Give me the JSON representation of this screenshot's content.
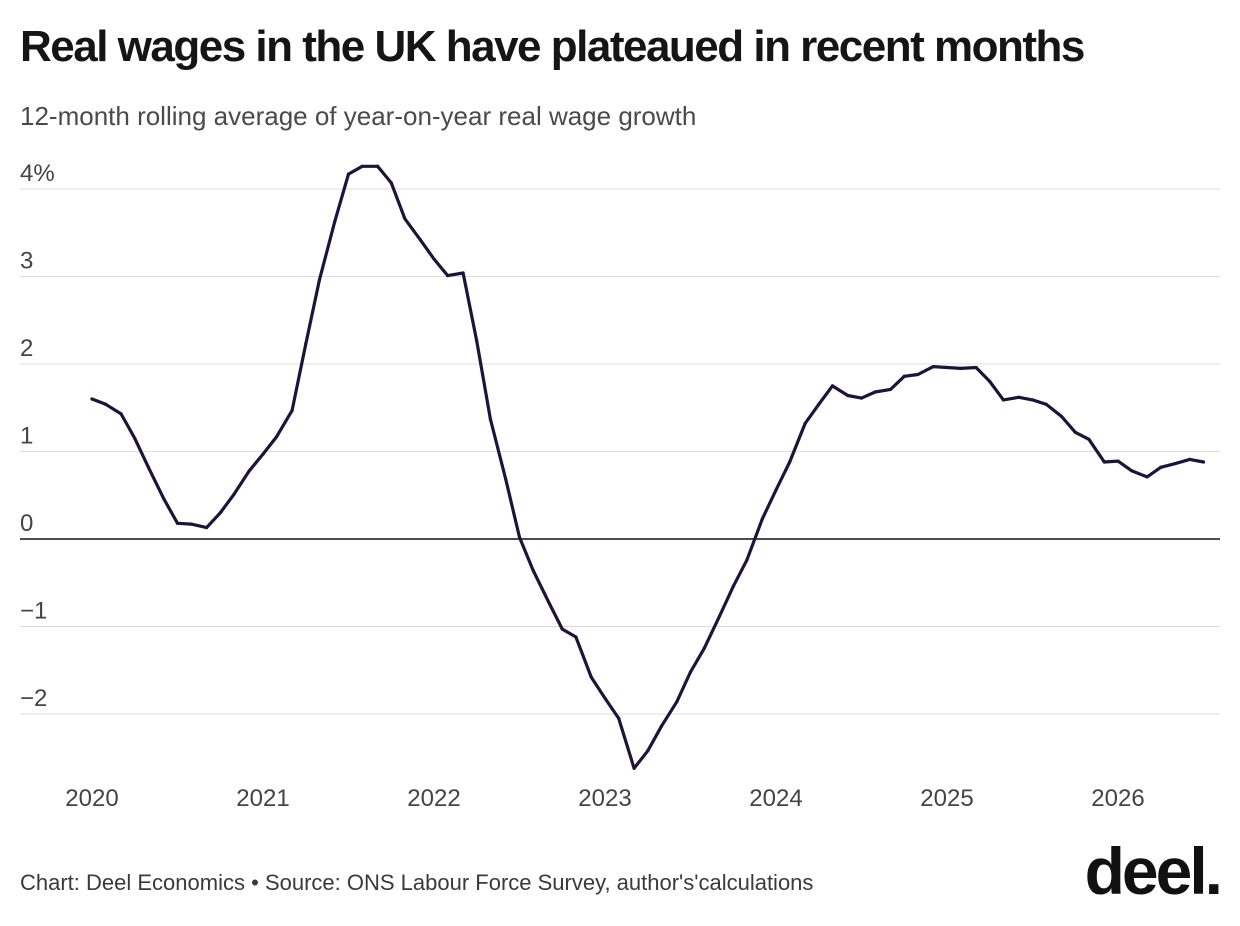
{
  "header": {
    "title": "Real wages in the UK have plateaued in recent months",
    "subtitle": "12-month rolling average of year-on-year real wage growth"
  },
  "footer": {
    "credit": "Chart: Deel Economics",
    "separator": "•",
    "source": "Source: ONS Labour Force Survey, author's'calculations",
    "logo": "deel."
  },
  "chart_data": {
    "type": "line",
    "x_unit": "year (decimal)",
    "xlim": [
      2020,
      2026.67
    ],
    "ylim": [
      -2.6,
      4.3
    ],
    "grid": true,
    "y_ticks": [
      4,
      3,
      2,
      1,
      0,
      -1,
      -2
    ],
    "y_tick_labels": [
      "4%",
      "3",
      "2",
      "1",
      "0",
      "−1",
      "−2"
    ],
    "x_ticks": [
      2020,
      2021,
      2022,
      2023,
      2024,
      2025,
      2026
    ],
    "x_tick_labels": [
      "2020",
      "2021",
      "2022",
      "2023",
      "2024",
      "2025",
      "2026"
    ],
    "line_color": "#1e1338",
    "series": [
      {
        "x": [
          2020.0,
          2020.08,
          2020.17,
          2020.25,
          2020.33,
          2020.42,
          2020.5,
          2020.58,
          2020.67,
          2020.75,
          2020.83,
          2020.92,
          2021.0,
          2021.08,
          2021.17,
          2021.25,
          2021.33,
          2021.42,
          2021.5,
          2021.58,
          2021.67,
          2021.75,
          2021.83,
          2021.92,
          2022.0,
          2022.08,
          2022.17,
          2022.25,
          2022.33,
          2022.42,
          2022.5,
          2022.58,
          2022.67,
          2022.75,
          2022.83,
          2022.92,
          2023.0,
          2023.08,
          2023.17,
          2023.25,
          2023.33,
          2023.42,
          2023.5,
          2023.58,
          2023.67,
          2023.75,
          2023.83,
          2023.92,
          2024.0,
          2024.08,
          2024.17,
          2024.25,
          2024.33,
          2024.42,
          2024.5,
          2024.58,
          2024.67,
          2024.75,
          2024.83,
          2024.92,
          2025.0,
          2025.08,
          2025.17,
          2025.25,
          2025.33,
          2025.42,
          2025.5,
          2025.58,
          2025.67,
          2025.75,
          2025.83,
          2025.92,
          2026.0,
          2026.08,
          2026.17,
          2026.25,
          2026.33,
          2026.42,
          2026.5
        ],
        "values": [
          1.6,
          1.54,
          1.43,
          1.15,
          0.82,
          0.46,
          0.18,
          0.17,
          0.13,
          0.3,
          0.51,
          0.78,
          0.97,
          1.17,
          1.47,
          2.23,
          2.96,
          3.63,
          4.17,
          4.26,
          4.26,
          4.07,
          3.66,
          3.42,
          3.2,
          3.01,
          3.04,
          2.26,
          1.37,
          0.68,
          0.02,
          -0.36,
          -0.72,
          -1.03,
          -1.12,
          -1.58,
          -1.82,
          -2.05,
          -2.62,
          -2.42,
          -2.14,
          -1.86,
          -1.52,
          -1.25,
          -0.88,
          -0.54,
          -0.24,
          0.23,
          0.56,
          0.88,
          1.32,
          1.54,
          1.75,
          1.64,
          1.61,
          1.68,
          1.71,
          1.86,
          1.88,
          1.97,
          1.96,
          1.95,
          1.96,
          1.8,
          1.59,
          1.62,
          1.59,
          1.54,
          1.4,
          1.22,
          1.14,
          0.88,
          0.89,
          0.78,
          0.71,
          0.82,
          0.86,
          0.91,
          0.88
        ]
      }
    ]
  }
}
